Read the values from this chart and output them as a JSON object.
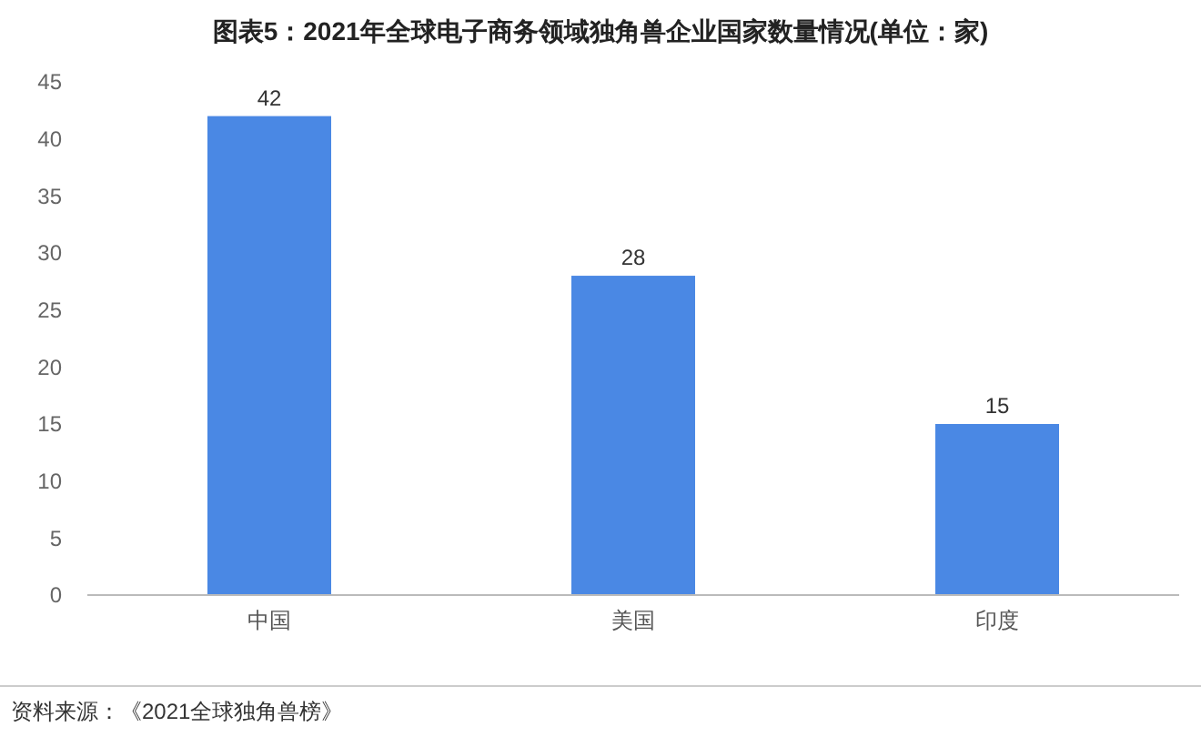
{
  "chart_data": {
    "type": "bar",
    "title": "图表5：2021年全球电子商务领域独角兽企业国家数量情况(单位：家)",
    "categories": [
      "中国",
      "美国",
      "印度"
    ],
    "values": [
      42,
      28,
      15
    ],
    "color": "#4a88e4",
    "ylim": [
      0,
      45
    ],
    "yticks": [
      0,
      5,
      10,
      15,
      20,
      25,
      30,
      35,
      40,
      45
    ],
    "data_labels": true,
    "annotations": [
      "资料来源：《2021全球独角兽榜》"
    ]
  }
}
